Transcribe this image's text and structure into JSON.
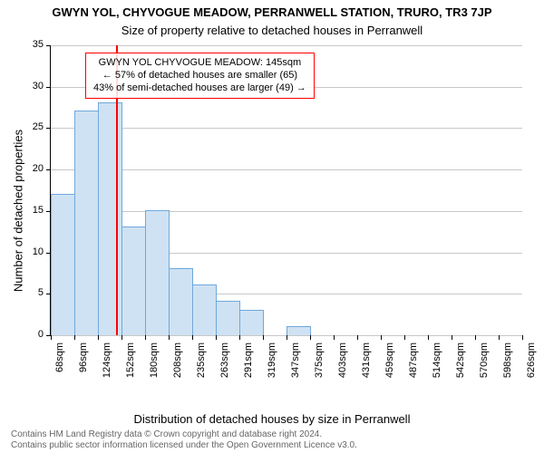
{
  "title_line1": "GWYN YOL, CHYVOGUE MEADOW, PERRANWELL STATION, TRURO, TR3 7JP",
  "title_line2": "Size of property relative to detached houses in Perranwell",
  "title_fontsize": 13,
  "subtitle_fontsize": 13,
  "ylabel": "Number of detached properties",
  "xlabel": "Distribution of detached houses by size in Perranwell",
  "axis_label_fontsize": 13,
  "tick_fontsize": 11,
  "footer_line1": "Contains HM Land Registry data © Crown copyright and database right 2024.",
  "footer_line2": "Contains public sector information licensed under the Open Government Licence v3.0.",
  "footer_fontsize": 10,
  "footer_color": "#666666",
  "background_color": "#ffffff",
  "grid_color": "#c8c8c8",
  "bar_fill": "#cfe2f3",
  "bar_border": "#6fa8dc",
  "bar_border_width": 1,
  "marker_color": "#ff0000",
  "marker_width": 2,
  "chart": {
    "type": "histogram",
    "x_categories": [
      "68sqm",
      "96sqm",
      "124sqm",
      "152sqm",
      "180sqm",
      "208sqm",
      "235sqm",
      "263sqm",
      "291sqm",
      "319sqm",
      "347sqm",
      "375sqm",
      "403sqm",
      "431sqm",
      "459sqm",
      "487sqm",
      "514sqm",
      "542sqm",
      "570sqm",
      "598sqm",
      "626sqm"
    ],
    "values": [
      17,
      27,
      28,
      13,
      15,
      8,
      6,
      4,
      3,
      0,
      1,
      0,
      0,
      0,
      0,
      0,
      0,
      0,
      0,
      0
    ],
    "ymin": 0,
    "ymax": 35,
    "yticks": [
      0,
      5,
      10,
      15,
      20,
      25,
      30,
      35
    ],
    "bar_width_ratio": 1.0,
    "marker_value_sqm": 145,
    "marker_x_low": 68,
    "marker_x_high": 626
  },
  "infobox": {
    "line1": "GWYN YOL CHYVOGUE MEADOW: 145sqm",
    "line2": "← 57% of detached houses are smaller (65)",
    "line3": "43% of semi-detached houses are larger (49) →",
    "border_color": "#ff0000",
    "fontsize": 11
  }
}
